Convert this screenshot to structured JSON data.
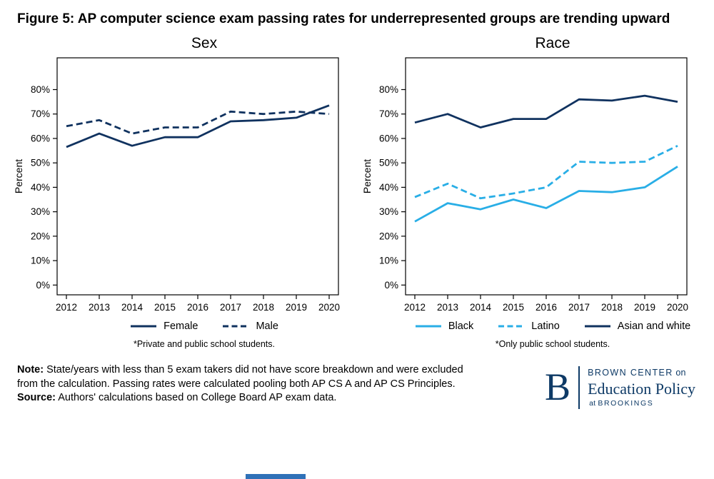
{
  "page": {
    "title": "Figure 5: AP computer science exam passing rates for underrepresented groups are trending upward"
  },
  "colors": {
    "navy": "#10325f",
    "light_blue": "#29aee6",
    "axis": "#000000",
    "logo_navy": "#0e3a66"
  },
  "chart_data": [
    {
      "type": "line",
      "title": "Sex",
      "ylabel": "Percent",
      "x": [
        2012,
        2013,
        2014,
        2015,
        2016,
        2017,
        2018,
        2019,
        2020
      ],
      "ylim": [
        0,
        80
      ],
      "ytick_values": [
        0,
        10,
        20,
        30,
        40,
        50,
        60,
        70,
        80
      ],
      "ytick_labels": [
        "0%",
        "10%",
        "20%",
        "30%",
        "40%",
        "50%",
        "60%",
        "70%",
        "80%"
      ],
      "grid": false,
      "legend_position": "bottom",
      "series": [
        {
          "name": "Female",
          "color": "#10325f",
          "dash": false,
          "values": [
            56.5,
            62,
            57,
            60.5,
            60.5,
            67,
            67.5,
            68.5,
            73.5
          ]
        },
        {
          "name": "Male",
          "color": "#10325f",
          "dash": true,
          "values": [
            65,
            67.5,
            62,
            64.5,
            64.5,
            71,
            70,
            71,
            70
          ]
        }
      ],
      "footnote": "*Private and public school students."
    },
    {
      "type": "line",
      "title": "Race",
      "ylabel": "Percent",
      "x": [
        2012,
        2013,
        2014,
        2015,
        2016,
        2017,
        2018,
        2019,
        2020
      ],
      "ylim": [
        0,
        80
      ],
      "ytick_values": [
        0,
        10,
        20,
        30,
        40,
        50,
        60,
        70,
        80
      ],
      "ytick_labels": [
        "0%",
        "10%",
        "20%",
        "30%",
        "40%",
        "50%",
        "60%",
        "70%",
        "80%"
      ],
      "grid": false,
      "legend_position": "bottom",
      "series": [
        {
          "name": "Black",
          "color": "#29aee6",
          "dash": false,
          "values": [
            26,
            33.5,
            31,
            35,
            31.5,
            38.5,
            38,
            40,
            48.5
          ]
        },
        {
          "name": "Latino",
          "color": "#29aee6",
          "dash": true,
          "values": [
            36,
            41.5,
            35.5,
            37.5,
            40,
            50.5,
            50,
            50.5,
            57
          ]
        },
        {
          "name": "Asian and white",
          "color": "#10325f",
          "dash": false,
          "values": [
            66.5,
            70,
            64.5,
            68,
            68,
            76,
            75.5,
            77.5,
            75
          ]
        }
      ],
      "footnote": "*Only public school students."
    }
  ],
  "notes": {
    "note_label": "Note:",
    "note_text": " State/years with less than 5 exam takers did not have score breakdown and were excluded from the calculation. Passing rates were calculated pooling both AP CS A and AP CS Principles.",
    "source_label": "Source:",
    "source_text": " Authors' calculations based on College Board AP exam data."
  },
  "logo": {
    "letter": "B",
    "line1_caps": "BROWN CENTER",
    "line1_rest": " on",
    "line2": "Education Policy",
    "line3_pre": "at ",
    "line3_caps": "BROOKINGS"
  }
}
